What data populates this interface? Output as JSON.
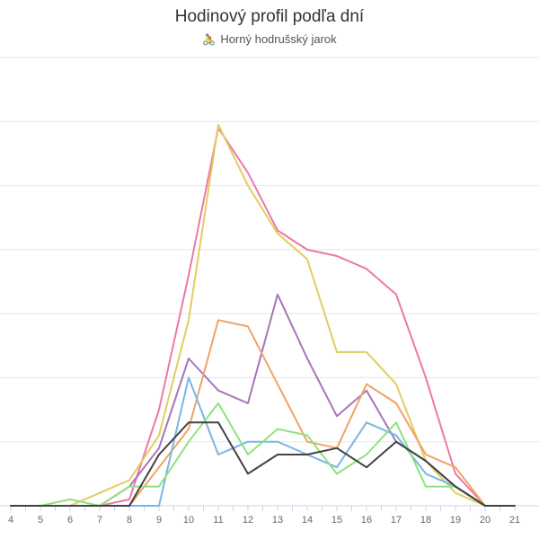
{
  "chart_data": {
    "type": "line",
    "title": "Hodinový profil podľa dní",
    "subtitle": "Horný hodrušský jarok",
    "subtitle_icon": "cyclist-icon",
    "x": [
      4,
      5,
      6,
      7,
      8,
      9,
      10,
      11,
      12,
      13,
      14,
      15,
      16,
      17,
      18,
      19,
      20,
      21
    ],
    "ylim": [
      0,
      70
    ],
    "grid": true,
    "series": [
      {
        "color": "#ee77aa",
        "values": [
          0,
          0,
          0,
          0,
          1,
          15,
          36,
          59,
          52,
          43,
          40,
          39,
          37,
          33,
          20,
          5,
          0,
          0
        ]
      },
      {
        "color": "#e2cd5f",
        "values": [
          0,
          0,
          0,
          2,
          4,
          11,
          29,
          59.5,
          50,
          42.5,
          38.5,
          24,
          24,
          19,
          7,
          2,
          0,
          0
        ]
      },
      {
        "color": "#a975b9",
        "values": [
          0,
          0,
          0,
          0,
          3,
          9,
          23,
          18,
          16,
          33,
          23,
          14,
          18,
          10,
          7,
          3,
          0,
          0
        ]
      },
      {
        "color": "#f2a265",
        "values": [
          0,
          0,
          0,
          0,
          0,
          6,
          12,
          29,
          28,
          19,
          10,
          9,
          19,
          16,
          8,
          6,
          0,
          0
        ]
      },
      {
        "color": "#7ab5e8",
        "values": [
          0,
          0,
          0,
          0,
          0,
          0,
          20,
          8,
          10,
          10,
          8,
          6,
          13,
          11,
          5,
          3,
          0,
          0
        ]
      },
      {
        "color": "#8fe27f",
        "values": [
          0,
          0,
          1,
          0,
          3,
          3,
          10,
          16,
          8,
          12,
          11,
          5,
          8,
          13,
          3,
          3,
          0,
          0
        ]
      },
      {
        "color": "#424242",
        "values": [
          0,
          0,
          0,
          0,
          0,
          8,
          13,
          13,
          5,
          8,
          8,
          9,
          6,
          10,
          7,
          3,
          0,
          0
        ]
      }
    ]
  }
}
